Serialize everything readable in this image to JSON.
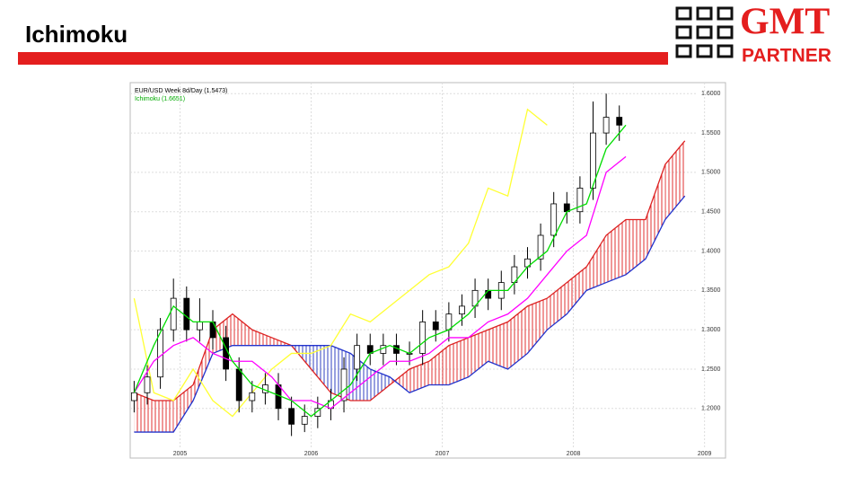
{
  "title": "Ichimoku",
  "logo": {
    "top": "GMT",
    "bottom": "PARTNER"
  },
  "chart_data": {
    "type": "candlestick",
    "title": "EUR/USD Week 8d/Day (1.5473)",
    "subtitle": "Ichimoku (1.6651)",
    "up_color": "#ffffff",
    "down_color": "#000000",
    "candles": {
      "x": [
        2004.65,
        2004.75,
        2004.85,
        2004.95,
        2005.05,
        2005.15,
        2005.25,
        2005.35,
        2005.45,
        2005.55,
        2005.65,
        2005.75,
        2005.85,
        2005.95,
        2006.05,
        2006.15,
        2006.25,
        2006.35,
        2006.45,
        2006.55,
        2006.65,
        2006.75,
        2006.85,
        2006.95,
        2007.05,
        2007.15,
        2007.25,
        2007.35,
        2007.45,
        2007.55,
        2007.65,
        2007.75,
        2007.85,
        2007.95,
        2008.05,
        2008.15,
        2008.25,
        2008.35
      ],
      "open": [
        1.21,
        1.22,
        1.24,
        1.3,
        1.34,
        1.3,
        1.31,
        1.29,
        1.25,
        1.21,
        1.22,
        1.23,
        1.2,
        1.18,
        1.19,
        1.2,
        1.21,
        1.25,
        1.28,
        1.27,
        1.28,
        1.27,
        1.27,
        1.31,
        1.3,
        1.32,
        1.33,
        1.35,
        1.34,
        1.36,
        1.38,
        1.39,
        1.42,
        1.46,
        1.45,
        1.48,
        1.55,
        1.57
      ],
      "high": [
        1.235,
        1.255,
        1.315,
        1.365,
        1.355,
        1.34,
        1.325,
        1.305,
        1.265,
        1.235,
        1.245,
        1.245,
        1.215,
        1.205,
        1.215,
        1.225,
        1.265,
        1.295,
        1.295,
        1.295,
        1.295,
        1.285,
        1.325,
        1.325,
        1.335,
        1.345,
        1.365,
        1.365,
        1.375,
        1.395,
        1.405,
        1.435,
        1.475,
        1.475,
        1.495,
        1.59,
        1.6,
        1.585
      ],
      "low": [
        1.195,
        1.205,
        1.225,
        1.285,
        1.285,
        1.285,
        1.275,
        1.235,
        1.195,
        1.195,
        1.205,
        1.185,
        1.165,
        1.17,
        1.175,
        1.185,
        1.195,
        1.235,
        1.255,
        1.255,
        1.255,
        1.255,
        1.255,
        1.285,
        1.285,
        1.305,
        1.315,
        1.325,
        1.325,
        1.345,
        1.365,
        1.375,
        1.405,
        1.435,
        1.435,
        1.465,
        1.535,
        1.54
      ],
      "close": [
        1.22,
        1.24,
        1.3,
        1.34,
        1.3,
        1.31,
        1.29,
        1.25,
        1.21,
        1.22,
        1.23,
        1.2,
        1.18,
        1.19,
        1.2,
        1.21,
        1.25,
        1.28,
        1.27,
        1.28,
        1.27,
        1.27,
        1.31,
        1.3,
        1.32,
        1.33,
        1.35,
        1.34,
        1.36,
        1.38,
        1.39,
        1.42,
        1.46,
        1.45,
        1.48,
        1.55,
        1.57,
        1.56
      ]
    },
    "lines": {
      "x": [
        2004.65,
        2004.8,
        2004.95,
        2005.1,
        2005.25,
        2005.4,
        2005.55,
        2005.7,
        2005.85,
        2006.0,
        2006.15,
        2006.3,
        2006.45,
        2006.6,
        2006.75,
        2006.9,
        2007.05,
        2007.2,
        2007.35,
        2007.5,
        2007.65,
        2007.8,
        2007.95,
        2008.1,
        2008.25,
        2008.4,
        2008.55,
        2008.7,
        2008.85
      ],
      "series": [
        {
          "color": "#ffff33",
          "values": [
            1.34,
            1.22,
            1.21,
            1.25,
            1.21,
            1.19,
            1.22,
            1.25,
            1.27,
            1.27,
            1.28,
            1.32,
            1.31,
            1.33,
            1.35,
            1.37,
            1.38,
            1.41,
            1.48,
            1.47,
            1.58,
            1.56,
            null,
            null,
            null,
            null,
            null,
            null,
            null
          ]
        },
        {
          "color": "#ff00ff",
          "values": [
            1.22,
            1.26,
            1.28,
            1.29,
            1.27,
            1.26,
            1.26,
            1.24,
            1.21,
            1.21,
            1.2,
            1.22,
            1.24,
            1.26,
            1.26,
            1.27,
            1.29,
            1.29,
            1.31,
            1.32,
            1.34,
            1.37,
            1.4,
            1.42,
            1.5,
            1.52,
            null,
            null,
            null
          ]
        },
        {
          "color": "#00dd00",
          "values": [
            1.22,
            1.28,
            1.33,
            1.31,
            1.31,
            1.26,
            1.23,
            1.22,
            1.21,
            1.19,
            1.21,
            1.23,
            1.27,
            1.28,
            1.27,
            1.29,
            1.3,
            1.32,
            1.35,
            1.35,
            1.38,
            1.4,
            1.45,
            1.46,
            1.53,
            1.56,
            null,
            null,
            null
          ]
        },
        {
          "color": "#dd2222",
          "values": [
            1.22,
            1.21,
            1.21,
            1.23,
            1.3,
            1.32,
            1.3,
            1.29,
            1.28,
            1.25,
            1.22,
            1.21,
            1.21,
            1.23,
            1.25,
            1.26,
            1.28,
            1.29,
            1.3,
            1.31,
            1.33,
            1.34,
            1.36,
            1.38,
            1.42,
            1.44,
            1.44,
            1.51,
            1.54
          ]
        },
        {
          "color": "#2233cc",
          "values": [
            1.17,
            1.17,
            1.17,
            1.21,
            1.27,
            1.28,
            1.28,
            1.28,
            1.28,
            1.28,
            1.28,
            1.27,
            1.25,
            1.24,
            1.22,
            1.23,
            1.23,
            1.24,
            1.26,
            1.25,
            1.27,
            1.3,
            1.32,
            1.35,
            1.36,
            1.37,
            1.39,
            1.44,
            1.47
          ]
        }
      ]
    },
    "xlim": [
      2004.62,
      2009.16
    ],
    "xticks": [
      2005,
      2006,
      2007,
      2008,
      2009
    ],
    "ylim": [
      1.137,
      1.614
    ],
    "yticks": [
      {
        "value": 1.2,
        "label": "1.2000"
      },
      {
        "value": 1.25,
        "label": "1.2500"
      },
      {
        "value": 1.3,
        "label": "1.3000"
      },
      {
        "value": 1.35,
        "label": "1.3500"
      },
      {
        "value": 1.4,
        "label": "1.4000"
      },
      {
        "value": 1.45,
        "label": "1.4500"
      },
      {
        "value": 1.5,
        "label": "1.5000"
      },
      {
        "value": 1.55,
        "label": "1.5500"
      },
      {
        "value": 1.6,
        "label": "1.6000"
      }
    ],
    "grid": true
  }
}
